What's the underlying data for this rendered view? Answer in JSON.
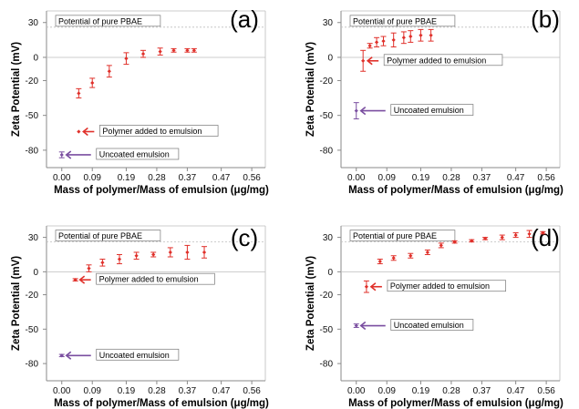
{
  "colors": {
    "data": "#e0302a",
    "uncoated": "#7a4ea0",
    "ref_line": "#bdbdbd",
    "axis": "#8a8a8a",
    "frame": "#bcbcbc"
  },
  "chart_data": [
    {
      "type": "scatter",
      "panel_label": "(a)",
      "xlabel": "Mass of polymer/Mass of emulsion (μg/mg)",
      "ylabel": "Zeta Potential (mV)",
      "xticks": [
        0.0,
        0.09,
        0.19,
        0.28,
        0.37,
        0.47,
        0.56
      ],
      "xtick_labels": [
        "0.00",
        "0.09",
        "0.19",
        "0.28",
        "0.37",
        "0.47",
        "0.56"
      ],
      "yticks": [
        30,
        0,
        -20,
        -50,
        -80
      ],
      "ytick_labels": [
        "30",
        "0",
        "-20",
        "-50",
        "-80"
      ],
      "xlim": [
        -0.045,
        0.6
      ],
      "ylim": [
        -95,
        40
      ],
      "reference_line": {
        "y": 26,
        "label": "Potential of pure PBAE"
      },
      "series": [
        {
          "name": "Polymer added to emulsion",
          "x": [
            0.05,
            0.09,
            0.14,
            0.19,
            0.24,
            0.29,
            0.33,
            0.37,
            0.39
          ],
          "y": [
            -31,
            -22,
            -12,
            -1,
            3,
            5,
            6,
            6,
            6
          ],
          "err": [
            4,
            4,
            5,
            5,
            3,
            3,
            1.5,
            1.5,
            1.5
          ]
        },
        {
          "name": "Uncoated emulsion",
          "x": [
            0.0
          ],
          "y": [
            -84
          ],
          "err": [
            2.5
          ]
        }
      ],
      "annotations": [
        {
          "text": "Polymer added to emulsion",
          "x": 0.05,
          "y": -64
        },
        {
          "text": "Uncoated emulsion",
          "x": 0.0,
          "y": -84
        }
      ]
    },
    {
      "type": "scatter",
      "panel_label": "(b)",
      "xlabel": "Mass of polymer/Mass of emulsion (μg/mg)",
      "ylabel": "Zeta Potential (mV)",
      "xticks": [
        0.0,
        0.09,
        0.19,
        0.28,
        0.37,
        0.47,
        0.56
      ],
      "xtick_labels": [
        "0.00",
        "0.09",
        "0.19",
        "0.28",
        "0.37",
        "0.47",
        "0.56"
      ],
      "yticks": [
        30,
        0,
        -20,
        -50,
        -80
      ],
      "ytick_labels": [
        "30",
        "0",
        "-20",
        "-50",
        "-80"
      ],
      "xlim": [
        -0.045,
        0.6
      ],
      "ylim": [
        -95,
        40
      ],
      "reference_line": {
        "y": 26,
        "label": "Potential of pure PBAE"
      },
      "series": [
        {
          "name": "Polymer added to emulsion",
          "x": [
            0.02,
            0.04,
            0.06,
            0.08,
            0.11,
            0.14,
            0.16,
            0.19,
            0.22
          ],
          "y": [
            -3,
            10,
            13,
            14,
            15,
            17,
            18,
            19,
            19
          ],
          "err": [
            9,
            2,
            4,
            4,
            6,
            5,
            5,
            5,
            5
          ]
        },
        {
          "name": "Uncoated emulsion",
          "x": [
            0.0
          ],
          "y": [
            -46
          ],
          "err": [
            7
          ]
        }
      ],
      "annotations": [
        {
          "text": "Polymer added to emulsion",
          "x": 0.02,
          "y": -3
        },
        {
          "text": "Uncoated emulsion",
          "x": 0.0,
          "y": -46
        }
      ]
    },
    {
      "type": "scatter",
      "panel_label": "(c)",
      "xlabel": "Mass of polymer/Mass of emulsion (μg/mg)",
      "ylabel": "Zeta Potential (mV)",
      "xticks": [
        0.0,
        0.09,
        0.19,
        0.28,
        0.37,
        0.47,
        0.56
      ],
      "xtick_labels": [
        "0.00",
        "0.09",
        "0.19",
        "0.28",
        "0.37",
        "0.47",
        "0.56"
      ],
      "yticks": [
        30,
        0,
        -20,
        -50,
        -80
      ],
      "ytick_labels": [
        "30",
        "0",
        "-20",
        "-50",
        "-80"
      ],
      "xlim": [
        -0.045,
        0.6
      ],
      "ylim": [
        -95,
        40
      ],
      "reference_line": {
        "y": 26,
        "label": "Potential of pure PBAE"
      },
      "series": [
        {
          "name": "Polymer added to emulsion",
          "x": [
            0.04,
            0.08,
            0.12,
            0.17,
            0.22,
            0.27,
            0.32,
            0.37,
            0.42
          ],
          "y": [
            -7,
            3,
            8,
            11,
            14,
            15,
            17,
            17,
            17
          ],
          "err": [
            1,
            3,
            3,
            4,
            3,
            2,
            4,
            6,
            5
          ]
        },
        {
          "name": "Uncoated emulsion",
          "x": [
            0.0
          ],
          "y": [
            -73
          ],
          "err": [
            1
          ]
        }
      ],
      "annotations": [
        {
          "text": "Polymer added to emulsion",
          "x": 0.04,
          "y": -7
        },
        {
          "text": "Uncoated emulsion",
          "x": 0.0,
          "y": -73
        }
      ]
    },
    {
      "type": "scatter",
      "panel_label": "(d)",
      "xlabel": "Mass of polymer/Mass of emulsion (μg/mg)",
      "ylabel": "Zeta Potential (mV)",
      "xticks": [
        0.0,
        0.09,
        0.19,
        0.28,
        0.37,
        0.47,
        0.56
      ],
      "xtick_labels": [
        "0.00",
        "0.09",
        "0.19",
        "0.28",
        "0.37",
        "0.47",
        "0.56"
      ],
      "yticks": [
        30,
        0,
        -20,
        -50,
        -80
      ],
      "ytick_labels": [
        "30",
        "0",
        "-20",
        "-50",
        "-80"
      ],
      "xlim": [
        -0.045,
        0.6
      ],
      "ylim": [
        -95,
        40
      ],
      "reference_line": {
        "y": 26,
        "label": "Potential of pure PBAE"
      },
      "series": [
        {
          "name": "Polymer added to emulsion",
          "x": [
            0.03,
            0.07,
            0.11,
            0.16,
            0.21,
            0.25,
            0.29,
            0.34,
            0.38,
            0.43,
            0.47,
            0.51,
            0.55
          ],
          "y": [
            -13,
            9,
            12,
            14,
            17,
            23,
            26,
            27,
            29,
            30,
            32,
            33,
            34
          ],
          "err": [
            5,
            2,
            2,
            2,
            2,
            2,
            1,
            1,
            1,
            2,
            2,
            3,
            1
          ]
        },
        {
          "name": "Uncoated emulsion",
          "x": [
            0.0
          ],
          "y": [
            -47
          ],
          "err": [
            1.5
          ]
        }
      ],
      "annotations": [
        {
          "text": "Polymer added to emulsion",
          "x": 0.03,
          "y": -13
        },
        {
          "text": "Uncoated emulsion",
          "x": 0.0,
          "y": -47
        }
      ]
    }
  ]
}
